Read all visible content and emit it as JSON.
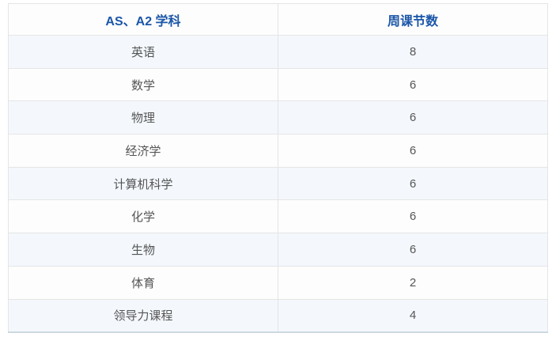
{
  "table": {
    "columns": [
      {
        "label": "AS、A2 学科"
      },
      {
        "label": "周课节数"
      }
    ],
    "rows": [
      {
        "subject": "英语",
        "periods": "8"
      },
      {
        "subject": "数学",
        "periods": "6"
      },
      {
        "subject": "物理",
        "periods": "6"
      },
      {
        "subject": "经济学",
        "periods": "6"
      },
      {
        "subject": "计算机科学",
        "periods": "6"
      },
      {
        "subject": "化学",
        "periods": "6"
      },
      {
        "subject": "生物",
        "periods": "6"
      },
      {
        "subject": "体育",
        "periods": "2"
      },
      {
        "subject": "领导力课程",
        "periods": "4"
      }
    ],
    "colors": {
      "header_text": "#1a56a8",
      "body_text": "#555555",
      "row_alt_bg": "#f4f8fd",
      "row_bg": "#fdfdfd",
      "border": "#e5e5e5",
      "bottom_border": "#ccd8df"
    }
  }
}
